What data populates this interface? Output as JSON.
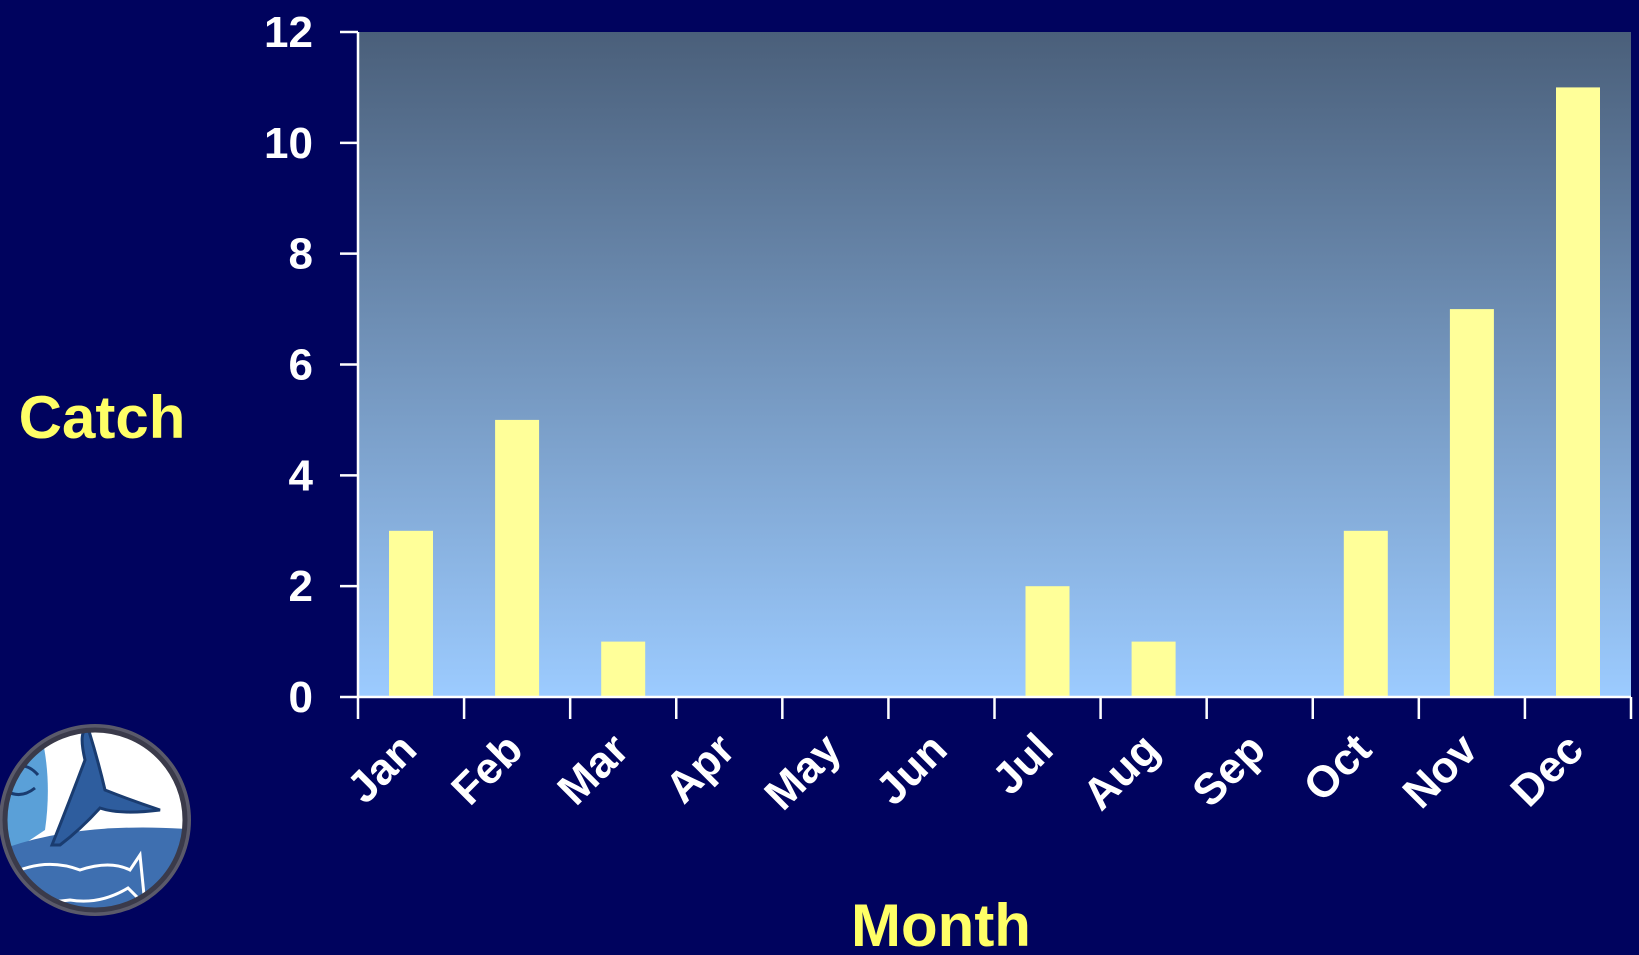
{
  "colors": {
    "background": "#00035e",
    "plot_top": "#4a5f7a",
    "plot_bottom": "#9ccbff",
    "bar": "#ffff99",
    "axis_title": "#ffff66",
    "tick_label": "#ffffff",
    "axis_line": "#ffffff"
  },
  "logo": {
    "icon": "whale-tail-and-fish-seal-icon"
  },
  "chart_data": {
    "type": "bar",
    "xlabel": "Month",
    "ylabel": "Catch",
    "ylim": [
      0,
      12
    ],
    "yticks": [
      0,
      2,
      4,
      6,
      8,
      10,
      12
    ],
    "categories": [
      "Jan",
      "Feb",
      "Mar",
      "Apr",
      "May",
      "Jun",
      "Jul",
      "Aug",
      "Sep",
      "Oct",
      "Nov",
      "Dec"
    ],
    "values": [
      3,
      5,
      1,
      0,
      0,
      0,
      2,
      1,
      0,
      3,
      7,
      11
    ],
    "grid": false,
    "legend": "none"
  }
}
